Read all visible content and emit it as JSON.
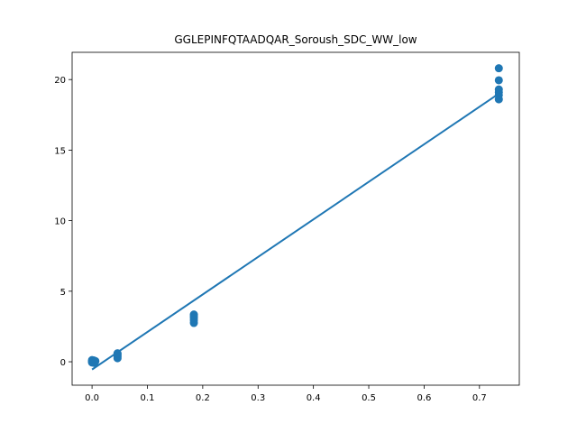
{
  "chart_data": {
    "type": "scatter",
    "title": "GGLEPINFQTAADQAR_Soroush_SDC_WW_low",
    "xlabel": "",
    "ylabel": "",
    "xlim": [
      -0.036,
      0.772
    ],
    "ylim": [
      -1.66,
      21.93
    ],
    "xticks": [
      0.0,
      0.1,
      0.2,
      0.3,
      0.4,
      0.5,
      0.6,
      0.7
    ],
    "xtick_labels": [
      "0.0",
      "0.1",
      "0.2",
      "0.3",
      "0.4",
      "0.5",
      "0.6",
      "0.7"
    ],
    "yticks": [
      0,
      5,
      10,
      15,
      20
    ],
    "ytick_labels": [
      "0",
      "5",
      "10",
      "15",
      "20"
    ],
    "grid": false,
    "legend": "none",
    "color": "#1f77b4",
    "points": [
      {
        "x": 0.0,
        "y": 0.0
      },
      {
        "x": 0.0,
        "y": 0.05
      },
      {
        "x": 0.0,
        "y": -0.05
      },
      {
        "x": 0.002,
        "y": 0.02
      },
      {
        "x": 0.003,
        "y": 0.1
      },
      {
        "x": 0.005,
        "y": -0.02
      },
      {
        "x": 0.006,
        "y": 0.05
      },
      {
        "x": 0.004,
        "y": -0.08
      },
      {
        "x": 0.0,
        "y": 0.12
      },
      {
        "x": 0.046,
        "y": 0.25
      },
      {
        "x": 0.046,
        "y": 0.35
      },
      {
        "x": 0.046,
        "y": 0.45
      },
      {
        "x": 0.046,
        "y": 0.55
      },
      {
        "x": 0.046,
        "y": 0.6
      },
      {
        "x": 0.184,
        "y": 2.75
      },
      {
        "x": 0.184,
        "y": 2.95
      },
      {
        "x": 0.184,
        "y": 3.1
      },
      {
        "x": 0.184,
        "y": 3.25
      },
      {
        "x": 0.184,
        "y": 3.35
      },
      {
        "x": 0.735,
        "y": 18.6
      },
      {
        "x": 0.735,
        "y": 18.9
      },
      {
        "x": 0.735,
        "y": 19.1
      },
      {
        "x": 0.735,
        "y": 19.3
      },
      {
        "x": 0.735,
        "y": 19.95
      },
      {
        "x": 0.735,
        "y": 20.8
      }
    ],
    "fit_line": {
      "x": [
        0.0,
        0.735
      ],
      "y": [
        -0.55,
        19.0
      ]
    }
  }
}
